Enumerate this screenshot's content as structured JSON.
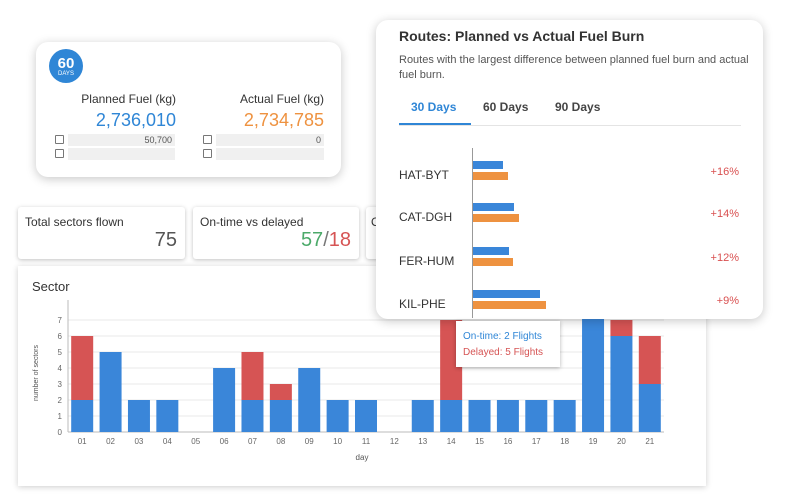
{
  "fuel": {
    "days_num": "60",
    "days_unit": "DAYS",
    "planned_label": "Planned Fuel (kg)",
    "planned_value": "2,736,010",
    "actual_label": "Actual Fuel (kg)",
    "actual_value": "2,734,785",
    "planned_row1": "50,700",
    "actual_row1": "0",
    "planned_color": "#2f86d6",
    "actual_color": "#ee9240"
  },
  "stats": {
    "sectors_label": "Total sectors flown",
    "sectors_value": "75",
    "ontime_label": "On-time vs delayed",
    "ontime_value": "57",
    "sep": "/",
    "delayed_value": "18",
    "third_label": "O"
  },
  "sector_chart": {
    "title": "Sector"
  },
  "routes": {
    "title": "Routes: Planned vs Actual Fuel Burn",
    "subtitle": "Routes with the largest difference between planned fuel burn and actual fuel burn.",
    "tabs": [
      {
        "label": "30 Days"
      },
      {
        "label": "60 Days"
      },
      {
        "label": "90 Days"
      }
    ],
    "items": [
      {
        "route": "HAT-BYT",
        "pct": "+16%",
        "planned": 30,
        "actual": 35
      },
      {
        "route": "CAT-DGH",
        "pct": "+14%",
        "planned": 41,
        "actual": 46
      },
      {
        "route": "FER-HUM",
        "pct": "+12%",
        "planned": 36,
        "actual": 40
      },
      {
        "route": "KIL-PHE",
        "pct": "+9%",
        "planned": 67,
        "actual": 73
      }
    ]
  },
  "tooltip": {
    "ontime": "On-time: 2 Flights",
    "delayed": "Delayed: 5 Flights"
  },
  "chart_data": {
    "type": "bar",
    "title": "Sector",
    "xlabel": "day",
    "ylabel": "number of sectors",
    "ylim": [
      0,
      8
    ],
    "yticks": [
      "0",
      "1",
      "2",
      "3",
      "4",
      "5",
      "6",
      "7"
    ],
    "categories": [
      "01",
      "02",
      "03",
      "04",
      "05",
      "06",
      "07",
      "08",
      "09",
      "10",
      "11",
      "12",
      "13",
      "14",
      "15",
      "16",
      "17",
      "18",
      "19",
      "20",
      "21"
    ],
    "series": [
      {
        "name": "On-time",
        "color": "#3a86d9",
        "values": [
          2,
          5,
          2,
          2,
          0,
          4,
          2,
          2,
          4,
          2,
          2,
          0,
          2,
          2,
          2,
          2,
          2,
          2,
          8,
          6,
          3
        ]
      },
      {
        "name": "Delayed",
        "color": "#d65454",
        "values": [
          4,
          0,
          0,
          0,
          0,
          0,
          3,
          1,
          0,
          0,
          0,
          0,
          0,
          5,
          0,
          0,
          0,
          0,
          0,
          1,
          3
        ]
      }
    ],
    "grid": true,
    "stacked": true
  }
}
